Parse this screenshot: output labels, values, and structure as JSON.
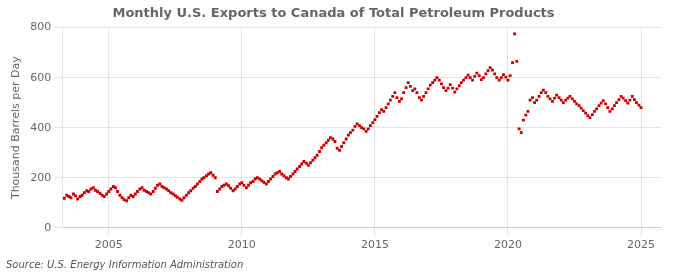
{
  "chart_data": {
    "type": "scatter",
    "title": "Monthly U.S. Exports to Canada of Total Petroleum Products",
    "ylabel": "Thousand Barrels per Day",
    "annotations": [
      "Source: U.S. Energy Information Administration"
    ],
    "color": "#cc0000",
    "marker": "square",
    "grid": true,
    "legend": false,
    "xlim": [
      2003.25,
      2025.75
    ],
    "xticks": [
      2005,
      2010,
      2015,
      2020,
      2025
    ],
    "ylim": [
      0,
      800
    ],
    "yticks": [
      0,
      200,
      400,
      600,
      800
    ],
    "x": [
      2003.33,
      2003.42,
      2003.5,
      2003.58,
      2003.67,
      2003.75,
      2003.83,
      2003.92,
      2004.0,
      2004.08,
      2004.17,
      2004.25,
      2004.33,
      2004.42,
      2004.5,
      2004.58,
      2004.67,
      2004.75,
      2004.83,
      2004.92,
      2005.0,
      2005.08,
      2005.17,
      2005.25,
      2005.33,
      2005.42,
      2005.5,
      2005.58,
      2005.67,
      2005.75,
      2005.83,
      2005.92,
      2006.0,
      2006.08,
      2006.17,
      2006.25,
      2006.33,
      2006.42,
      2006.5,
      2006.58,
      2006.67,
      2006.75,
      2006.83,
      2006.92,
      2007.0,
      2007.08,
      2007.17,
      2007.25,
      2007.33,
      2007.42,
      2007.5,
      2007.58,
      2007.67,
      2007.75,
      2007.83,
      2007.92,
      2008.0,
      2008.08,
      2008.17,
      2008.25,
      2008.33,
      2008.42,
      2008.5,
      2008.58,
      2008.67,
      2008.75,
      2008.83,
      2008.92,
      2009.0,
      2009.08,
      2009.17,
      2009.25,
      2009.33,
      2009.42,
      2009.5,
      2009.58,
      2009.67,
      2009.75,
      2009.83,
      2009.92,
      2010.0,
      2010.08,
      2010.17,
      2010.25,
      2010.33,
      2010.42,
      2010.5,
      2010.58,
      2010.67,
      2010.75,
      2010.83,
      2010.92,
      2011.0,
      2011.08,
      2011.17,
      2011.25,
      2011.33,
      2011.42,
      2011.5,
      2011.58,
      2011.67,
      2011.75,
      2011.83,
      2011.92,
      2012.0,
      2012.08,
      2012.17,
      2012.25,
      2012.33,
      2012.42,
      2012.5,
      2012.58,
      2012.67,
      2012.75,
      2012.83,
      2012.92,
      2013.0,
      2013.08,
      2013.17,
      2013.25,
      2013.33,
      2013.42,
      2013.5,
      2013.58,
      2013.67,
      2013.75,
      2013.83,
      2013.92,
      2014.0,
      2014.08,
      2014.17,
      2014.25,
      2014.33,
      2014.42,
      2014.5,
      2014.58,
      2014.67,
      2014.75,
      2014.83,
      2014.92,
      2015.0,
      2015.08,
      2015.17,
      2015.25,
      2015.33,
      2015.42,
      2015.5,
      2015.58,
      2015.67,
      2015.75,
      2015.83,
      2015.92,
      2016.0,
      2016.08,
      2016.17,
      2016.25,
      2016.33,
      2016.42,
      2016.5,
      2016.58,
      2016.67,
      2016.75,
      2016.83,
      2016.92,
      2017.0,
      2017.08,
      2017.17,
      2017.25,
      2017.33,
      2017.42,
      2017.5,
      2017.58,
      2017.67,
      2017.75,
      2017.83,
      2017.92,
      2018.0,
      2018.08,
      2018.17,
      2018.25,
      2018.33,
      2018.42,
      2018.5,
      2018.58,
      2018.67,
      2018.75,
      2018.83,
      2018.92,
      2019.0,
      2019.08,
      2019.17,
      2019.25,
      2019.33,
      2019.42,
      2019.5,
      2019.58,
      2019.67,
      2019.75,
      2019.83,
      2019.92,
      2020.0,
      2020.08,
      2020.17,
      2020.25,
      2020.33,
      2020.42,
      2020.5,
      2020.58,
      2020.67,
      2020.75,
      2020.83,
      2020.92,
      2021.0,
      2021.08,
      2021.17,
      2021.25,
      2021.33,
      2021.42,
      2021.5,
      2021.58,
      2021.67,
      2021.75,
      2021.83,
      2021.92,
      2022.0,
      2022.08,
      2022.17,
      2022.25,
      2022.33,
      2022.42,
      2022.5,
      2022.58,
      2022.67,
      2022.75,
      2022.83,
      2022.92,
      2023.0,
      2023.08,
      2023.17,
      2023.25,
      2023.33,
      2023.42,
      2023.5,
      2023.58,
      2023.67,
      2023.75,
      2023.83,
      2023.92,
      2024.0,
      2024.08,
      2024.17,
      2024.25,
      2024.33,
      2024.42,
      2024.5,
      2024.58,
      2024.67,
      2024.75,
      2024.83,
      2024.92,
      2025.0
    ],
    "values": [
      118,
      130,
      125,
      120,
      135,
      128,
      115,
      125,
      130,
      140,
      148,
      145,
      155,
      160,
      150,
      145,
      138,
      130,
      125,
      135,
      145,
      155,
      165,
      160,
      145,
      130,
      120,
      112,
      108,
      120,
      130,
      125,
      135,
      145,
      155,
      160,
      150,
      145,
      140,
      135,
      145,
      158,
      170,
      175,
      165,
      160,
      155,
      148,
      140,
      135,
      128,
      122,
      115,
      110,
      120,
      130,
      140,
      148,
      158,
      165,
      175,
      185,
      195,
      200,
      208,
      215,
      220,
      210,
      200,
      145,
      155,
      165,
      170,
      175,
      168,
      158,
      148,
      155,
      165,
      175,
      180,
      170,
      160,
      170,
      180,
      185,
      195,
      200,
      195,
      188,
      182,
      175,
      185,
      195,
      205,
      215,
      220,
      225,
      215,
      208,
      200,
      195,
      205,
      215,
      225,
      235,
      245,
      255,
      265,
      258,
      250,
      260,
      270,
      280,
      290,
      305,
      320,
      330,
      340,
      350,
      360,
      355,
      345,
      318,
      310,
      325,
      340,
      355,
      370,
      380,
      390,
      405,
      415,
      408,
      400,
      395,
      385,
      395,
      408,
      420,
      432,
      445,
      460,
      472,
      465,
      480,
      495,
      510,
      525,
      540,
      520,
      505,
      515,
      540,
      560,
      580,
      565,
      548,
      555,
      540,
      520,
      510,
      525,
      540,
      555,
      570,
      580,
      590,
      600,
      590,
      575,
      560,
      548,
      558,
      572,
      558,
      542,
      555,
      568,
      580,
      590,
      600,
      610,
      600,
      590,
      605,
      618,
      608,
      592,
      600,
      615,
      628,
      640,
      630,
      615,
      600,
      590,
      600,
      612,
      602,
      590,
      608,
      660,
      775,
      665,
      395,
      380,
      430,
      450,
      465,
      510,
      520,
      500,
      510,
      525,
      540,
      550,
      540,
      525,
      515,
      505,
      518,
      530,
      520,
      510,
      500,
      510,
      518,
      525,
      515,
      505,
      495,
      488,
      478,
      468,
      458,
      448,
      440,
      452,
      465,
      475,
      488,
      498,
      508,
      495,
      480,
      465,
      475,
      488,
      500,
      512,
      525,
      518,
      508,
      498,
      510,
      525,
      512,
      500,
      490,
      480
    ]
  }
}
